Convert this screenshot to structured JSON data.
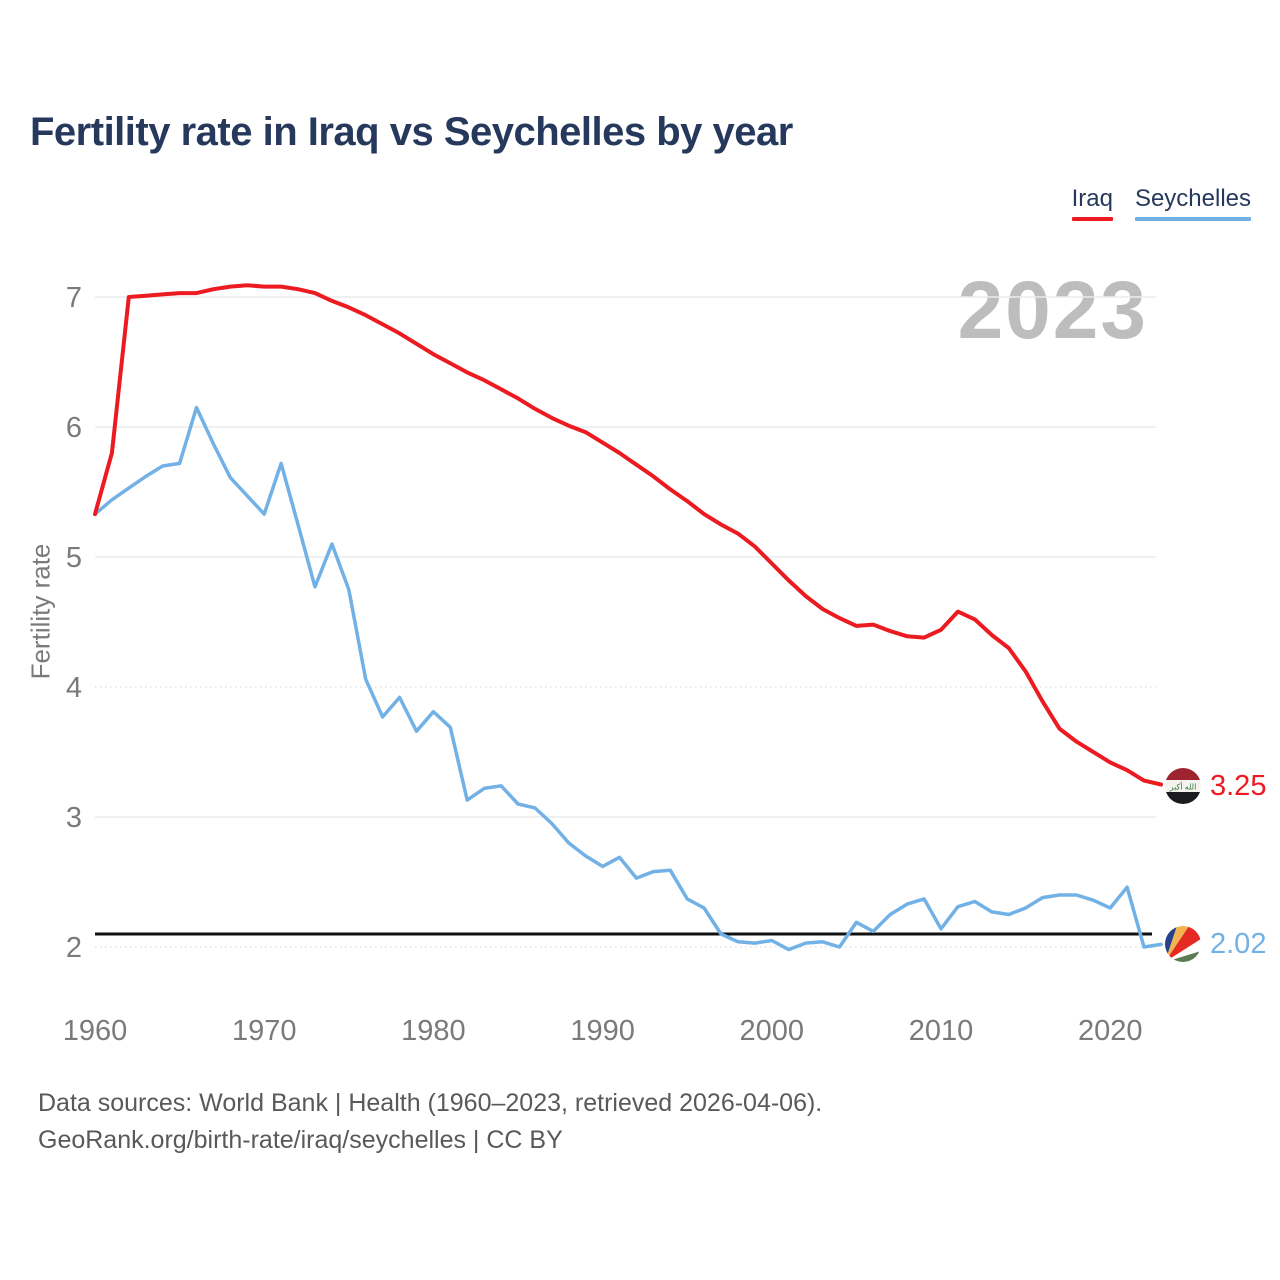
{
  "page": {
    "title": "Fertility rate in Iraq vs Seychelles by year"
  },
  "legend": {
    "items": [
      {
        "label": "Iraq",
        "color": "#ec1b21"
      },
      {
        "label": "Seychelles",
        "color": "#72b1e5"
      }
    ]
  },
  "footer": {
    "line1": "Data sources: World Bank | Health (1960–2023, retrieved 2026-04-06).",
    "line2": "GeoRank.org/birth-rate/iraq/seychelles | CC BY"
  },
  "chart_data": {
    "type": "line",
    "title": "Fertility rate in Iraq vs Seychelles by year",
    "ylabel": "Fertility rate",
    "xlabel": "",
    "watermark": "2023",
    "grid": "horizontal",
    "legend_position": "top-right",
    "xlim": [
      1960,
      2023
    ],
    "ylim": [
      2,
      7.2
    ],
    "x_ticks": [
      1960,
      1970,
      1980,
      1990,
      2000,
      2010,
      2020
    ],
    "y_ticks": [
      2,
      3,
      4,
      5,
      6,
      7
    ],
    "reference_line": {
      "value": 2.1,
      "color": "#111111"
    },
    "x": [
      1960,
      1961,
      1962,
      1963,
      1964,
      1965,
      1966,
      1967,
      1968,
      1969,
      1970,
      1971,
      1972,
      1973,
      1974,
      1975,
      1976,
      1977,
      1978,
      1979,
      1980,
      1981,
      1982,
      1983,
      1984,
      1985,
      1986,
      1987,
      1988,
      1989,
      1990,
      1991,
      1992,
      1993,
      1994,
      1995,
      1996,
      1997,
      1998,
      1999,
      2000,
      2001,
      2002,
      2003,
      2004,
      2005,
      2006,
      2007,
      2008,
      2009,
      2010,
      2011,
      2012,
      2013,
      2014,
      2015,
      2016,
      2017,
      2018,
      2019,
      2020,
      2021,
      2022,
      2023
    ],
    "series": [
      {
        "name": "Iraq",
        "color": "#ec1b21",
        "end_label": "3.25",
        "values": [
          5.33,
          5.8,
          7.0,
          7.01,
          7.02,
          7.03,
          7.03,
          7.06,
          7.08,
          7.09,
          7.08,
          7.08,
          7.06,
          7.03,
          6.97,
          6.92,
          6.86,
          6.79,
          6.72,
          6.64,
          6.56,
          6.49,
          6.42,
          6.36,
          6.29,
          6.22,
          6.14,
          6.07,
          6.01,
          5.96,
          5.88,
          5.8,
          5.71,
          5.62,
          5.52,
          5.43,
          5.33,
          5.25,
          5.18,
          5.08,
          4.95,
          4.82,
          4.7,
          4.6,
          4.53,
          4.47,
          4.48,
          4.43,
          4.39,
          4.38,
          4.44,
          4.58,
          4.52,
          4.4,
          4.3,
          4.12,
          3.89,
          3.68,
          3.58,
          3.5,
          3.42,
          3.36,
          3.28,
          3.25
        ]
      },
      {
        "name": "Seychelles",
        "color": "#72b1e5",
        "end_label": "2.02",
        "values": [
          5.33,
          5.44,
          5.53,
          5.62,
          5.7,
          5.72,
          6.15,
          5.87,
          5.61,
          5.47,
          5.33,
          5.72,
          5.25,
          4.77,
          5.1,
          4.75,
          4.06,
          3.77,
          3.92,
          3.66,
          3.81,
          3.69,
          3.13,
          3.22,
          3.24,
          3.1,
          3.07,
          2.95,
          2.8,
          2.7,
          2.62,
          2.69,
          2.53,
          2.58,
          2.59,
          2.37,
          2.3,
          2.1,
          2.04,
          2.03,
          2.05,
          1.98,
          2.03,
          2.04,
          2.0,
          2.19,
          2.12,
          2.25,
          2.33,
          2.37,
          2.14,
          2.31,
          2.35,
          2.27,
          2.25,
          2.3,
          2.38,
          2.4,
          2.4,
          2.36,
          2.3,
          2.46,
          2.0,
          2.02
        ]
      }
    ]
  }
}
